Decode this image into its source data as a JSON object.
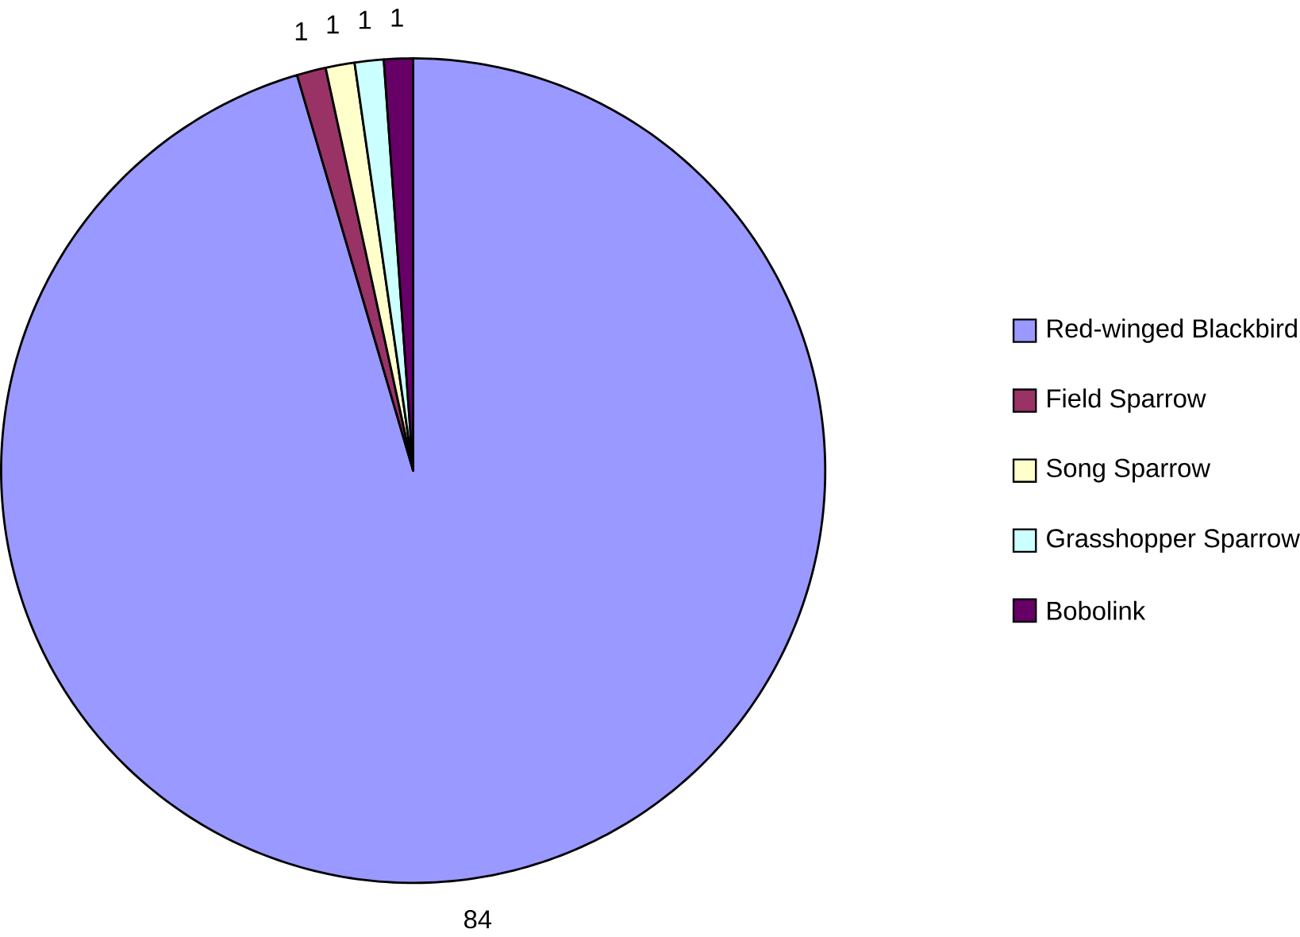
{
  "chart_data": {
    "type": "pie",
    "categories": [
      "Red-winged Blackbird",
      "Field Sparrow",
      "Song Sparrow",
      "Grasshopper Sparrow",
      "Bobolink"
    ],
    "values": [
      84,
      1,
      1,
      1,
      1
    ],
    "colors": [
      "#9999ff",
      "#993366",
      "#ffffcc",
      "#ccffff",
      "#660066"
    ],
    "data_labels": true,
    "legend": "right"
  }
}
